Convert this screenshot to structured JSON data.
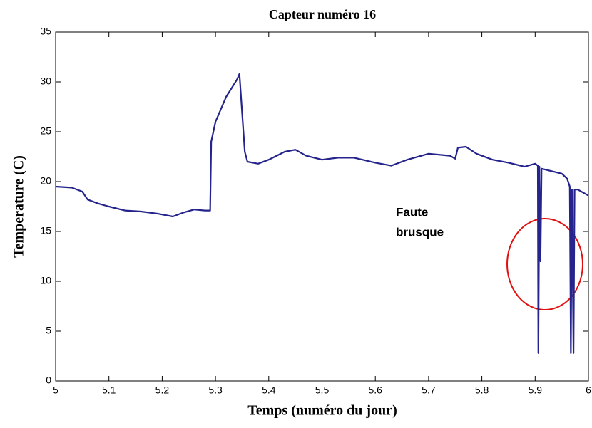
{
  "chart_data": {
    "type": "line",
    "title": "Capteur numéro 16",
    "xlabel": "Temps (numéro du jour)",
    "ylabel": "Temperature (C)",
    "annotation": [
      "Faute",
      "brusque"
    ],
    "color": "#24248c",
    "x": [
      5.0,
      5.03,
      5.05,
      5.06,
      5.08,
      5.1,
      5.13,
      5.16,
      5.19,
      5.22,
      5.24,
      5.26,
      5.28,
      5.29,
      5.292,
      5.3,
      5.32,
      5.34,
      5.345,
      5.355,
      5.36,
      5.38,
      5.4,
      5.43,
      5.45,
      5.47,
      5.5,
      5.53,
      5.56,
      5.6,
      5.63,
      5.66,
      5.7,
      5.74,
      5.75,
      5.755,
      5.77,
      5.79,
      5.82,
      5.85,
      5.88,
      5.9,
      5.905,
      5.906,
      5.908,
      5.91,
      5.912,
      5.95,
      5.96,
      5.965,
      5.967,
      5.969,
      5.972,
      5.974,
      5.98,
      6.0
    ],
    "values": [
      19.5,
      19.4,
      19.0,
      18.2,
      17.8,
      17.5,
      17.1,
      17.0,
      16.8,
      16.5,
      16.9,
      17.2,
      17.1,
      17.1,
      24,
      26,
      28.5,
      30.2,
      30.8,
      23,
      22,
      21.8,
      22.2,
      23.0,
      23.2,
      22.6,
      22.2,
      22.4,
      22.4,
      21.9,
      21.6,
      22.2,
      22.8,
      22.6,
      22.3,
      23.4,
      23.5,
      22.8,
      22.2,
      21.9,
      21.5,
      21.8,
      21.6,
      2.8,
      21.5,
      12,
      21.3,
      20.8,
      20.3,
      19.5,
      2.8,
      19.2,
      2.8,
      19.2,
      19.2,
      18.6
    ],
    "xlim": [
      5,
      6
    ],
    "ylim": [
      0,
      35
    ],
    "xticks": [
      5,
      5.1,
      5.2,
      5.3,
      5.4,
      5.5,
      5.6,
      5.7,
      5.8,
      5.9,
      6
    ],
    "yticks": [
      0,
      5,
      10,
      15,
      20,
      25,
      30,
      35
    ],
    "grid": false
  }
}
